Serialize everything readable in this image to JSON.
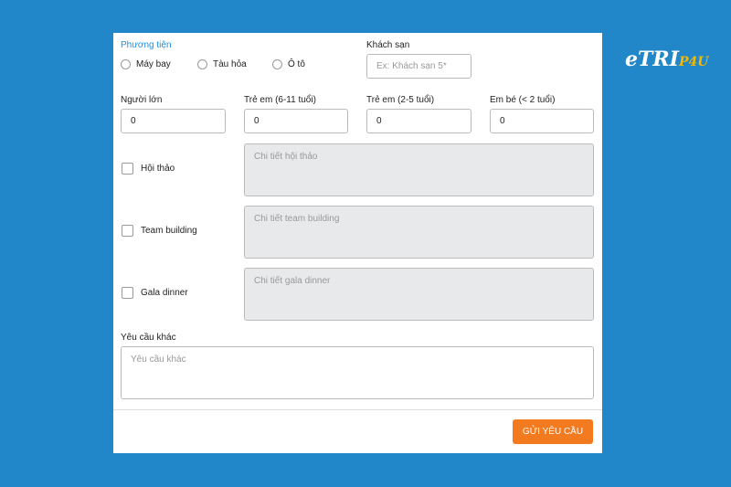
{
  "logo": {
    "text": "eTRIP4U"
  },
  "transport": {
    "label": "Phương tiện",
    "options": [
      "Máy bay",
      "Tàu hỏa",
      "Ô tô"
    ]
  },
  "hotel": {
    "label": "Khách sạn",
    "placeholder": "Ex: Khách sạn 5*"
  },
  "guests": [
    {
      "label": "Người lớn",
      "value": "0"
    },
    {
      "label": "Trẻ em (6-11 tuổi)",
      "value": "0"
    },
    {
      "label": "Trẻ em (2-5 tuổi)",
      "value": "0"
    },
    {
      "label": "Em bé (< 2 tuổi)",
      "value": "0"
    }
  ],
  "services": [
    {
      "label": "Hội thảo",
      "placeholder": "Chi tiết hội thảo"
    },
    {
      "label": "Team building",
      "placeholder": "Chi tiết team building"
    },
    {
      "label": "Gala dinner",
      "placeholder": "Chi tiết gala dinner"
    }
  ],
  "other": {
    "label": "Yêu cầu khác",
    "placeholder": "Yêu cầu khác"
  },
  "submit": "GỬI YÊU CẦU"
}
